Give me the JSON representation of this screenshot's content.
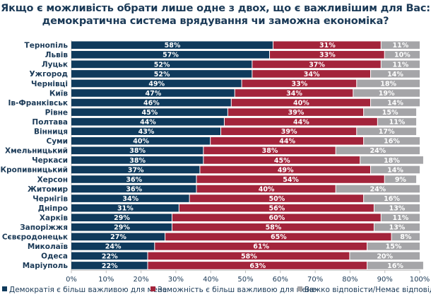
{
  "chart_data": {
    "type": "bar",
    "orientation": "horizontal",
    "stacked": true,
    "title_lines": [
      "Якщо є можливість обрати лише одне з двох, що є важливішим для Вас:",
      "демократична система врядування чи заможна економіка?"
    ],
    "categories": [
      "Тернопіль",
      "Львів",
      "Луцьк",
      "Ужгород",
      "Чернівці",
      "Київ",
      "Ів-Франківськ",
      "Рівне",
      "Полтава",
      "Вінниця",
      "Суми",
      "Хмельницький",
      "Черкаси",
      "Кропивницький",
      "Херсон",
      "Житомир",
      "Чернігів",
      "Дніпро",
      "Харків",
      "Запоріжжя",
      "Сєвєродонецьк",
      "Миколаїв",
      "Одеса",
      "Маріуполь"
    ],
    "series": [
      {
        "name": "Демократія є більш важливою для мене",
        "color": "#0f3a5c",
        "values": [
          58,
          57,
          52,
          52,
          49,
          47,
          46,
          45,
          44,
          43,
          40,
          38,
          38,
          37,
          36,
          36,
          34,
          31,
          29,
          29,
          27,
          24,
          22,
          22
        ]
      },
      {
        "name": "Заможність є більш важливою для мене",
        "color": "#a3243b",
        "values": [
          31,
          33,
          37,
          34,
          33,
          34,
          40,
          39,
          44,
          39,
          44,
          38,
          45,
          49,
          54,
          40,
          50,
          56,
          60,
          58,
          65,
          61,
          58,
          63
        ]
      },
      {
        "name": "Важко відповісти/Немає відповіді",
        "color": "#a5a5a8",
        "values": [
          11,
          10,
          11,
          14,
          18,
          19,
          14,
          15,
          11,
          17,
          16,
          24,
          18,
          14,
          9,
          24,
          16,
          13,
          11,
          13,
          8,
          15,
          20,
          16
        ]
      }
    ],
    "xlim": [
      0,
      100
    ],
    "xticks": [
      "0%",
      "10%",
      "20%",
      "30%",
      "40%",
      "50%",
      "60%",
      "70%",
      "80%",
      "90%",
      "100%"
    ],
    "value_suffix": "%",
    "grid": false,
    "legend_position": "bottom"
  }
}
